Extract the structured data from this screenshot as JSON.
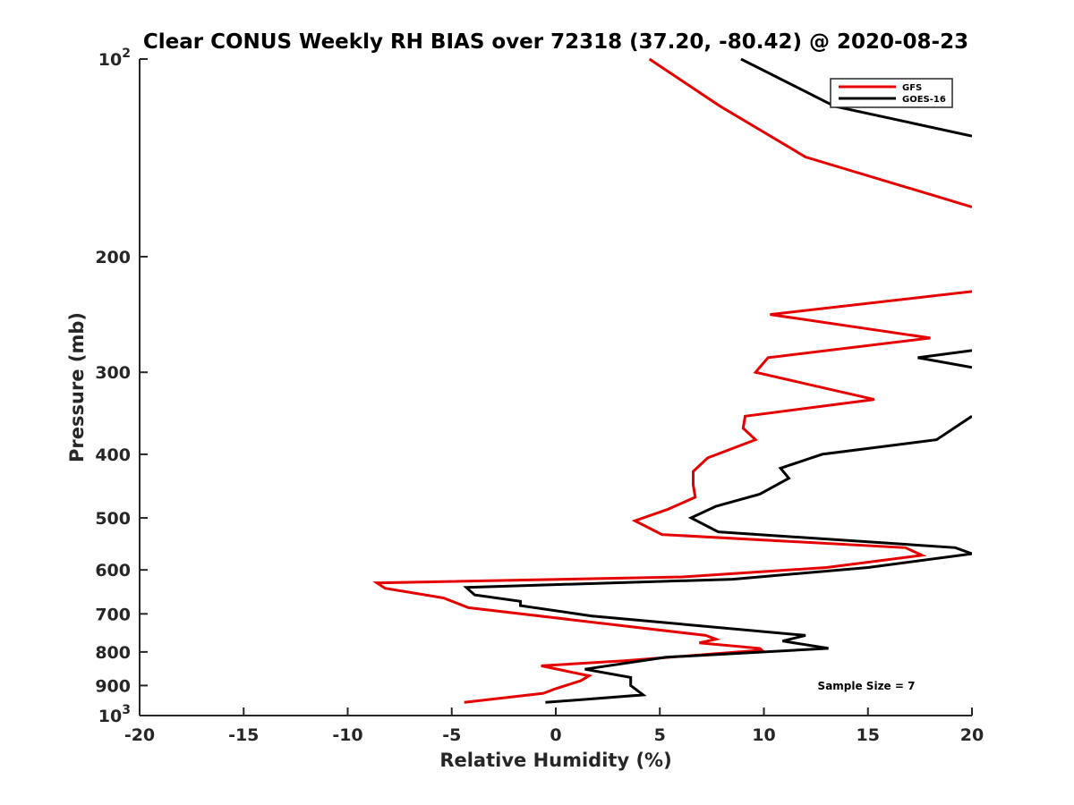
{
  "chart_data": {
    "type": "line",
    "title": "Clear CONUS Weekly RH BIAS over 72318 (37.20, -80.42) @ 2020-08-23",
    "xlabel": "Relative Humidity (%)",
    "ylabel": "Pressure (mb)",
    "xlim": [
      -20,
      20
    ],
    "ylim": [
      100,
      1000
    ],
    "yscale": "log",
    "y_reversed": true,
    "grid": false,
    "legend_position": "top-right",
    "x_ticks": [
      "-20",
      "-15",
      "-10",
      "-5",
      "0",
      "5",
      "10",
      "15",
      "20"
    ],
    "y_ticks": [
      {
        "value": 100,
        "base": "10",
        "exp": "2"
      },
      {
        "value": 200,
        "label": "200"
      },
      {
        "value": 300,
        "label": "300"
      },
      {
        "value": 400,
        "label": "400"
      },
      {
        "value": 500,
        "label": "500"
      },
      {
        "value": 600,
        "label": "600"
      },
      {
        "value": 700,
        "label": "700"
      },
      {
        "value": 800,
        "label": "800"
      },
      {
        "value": 900,
        "label": "900"
      },
      {
        "value": 1000,
        "base": "10",
        "exp": "3"
      }
    ],
    "annotation": "Sample Size = 7",
    "series": [
      {
        "name": "GFS",
        "color": "#e50000",
        "points": [
          [
            4.5,
            100
          ],
          [
            7.9,
            118
          ],
          [
            12,
            141
          ],
          [
            20,
            168
          ],
          null,
          [
            20,
            226
          ],
          [
            10.3,
            245
          ],
          [
            18,
            266
          ],
          [
            10.2,
            285
          ],
          [
            9.6,
            300
          ],
          [
            15.3,
            330
          ],
          [
            9.1,
            350
          ],
          [
            9,
            365
          ],
          [
            9.6,
            380
          ],
          [
            7.3,
            405
          ],
          [
            6.6,
            425
          ],
          [
            6.6,
            445
          ],
          [
            6.7,
            465
          ],
          [
            5.4,
            485
          ],
          [
            3.8,
            505
          ],
          [
            5.1,
            530
          ],
          [
            16.8,
            555
          ],
          [
            17.6,
            570
          ],
          [
            13,
            595
          ],
          [
            6.1,
            615
          ],
          [
            -8.6,
            628
          ],
          [
            -8.2,
            640
          ],
          [
            -5.4,
            662
          ],
          [
            -4.2,
            685
          ],
          [
            7.2,
            755
          ],
          [
            7.7,
            765
          ],
          [
            6.9,
            775
          ],
          [
            9.8,
            790
          ],
          [
            9.9,
            795
          ],
          [
            3.3,
            825
          ],
          [
            -0.7,
            840
          ],
          [
            1.6,
            870
          ],
          [
            1.2,
            885
          ],
          [
            0,
            910
          ],
          [
            -0.6,
            925
          ],
          [
            -4.4,
            955
          ]
        ]
      },
      {
        "name": "GOES-16",
        "color": "#000000",
        "points": [
          [
            8.9,
            100
          ],
          [
            13.4,
            118
          ],
          [
            20,
            131
          ],
          null,
          [
            20,
            278
          ],
          [
            17.4,
            285
          ],
          [
            20,
            295
          ],
          null,
          [
            20,
            350
          ],
          [
            18.3,
            380
          ],
          [
            12.8,
            400
          ],
          [
            10.8,
            420
          ],
          [
            11.2,
            435
          ],
          [
            9.8,
            460
          ],
          [
            7.7,
            480
          ],
          [
            6.5,
            500
          ],
          [
            7.8,
            525
          ],
          [
            19.2,
            555
          ],
          [
            20,
            567
          ],
          [
            15,
            595
          ],
          [
            8.5,
            620
          ],
          [
            -4.3,
            638
          ],
          [
            -3.9,
            655
          ],
          [
            -1.7,
            670
          ],
          [
            -1.7,
            680
          ],
          [
            1.7,
            705
          ],
          [
            12,
            755
          ],
          [
            10.9,
            770
          ],
          [
            13.1,
            790
          ],
          [
            5.3,
            815
          ],
          [
            1.4,
            850
          ],
          [
            3.6,
            875
          ],
          [
            3.6,
            900
          ],
          [
            4.2,
            930
          ],
          [
            -0.5,
            955
          ]
        ]
      }
    ]
  }
}
